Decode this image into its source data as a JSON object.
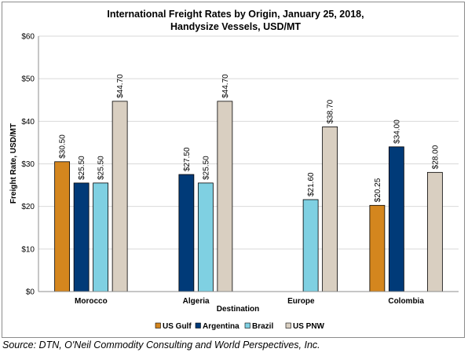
{
  "chart_data": {
    "type": "bar",
    "title": "International Freight Rates by Origin, January 25, 2018,",
    "subtitle": "Handysize Vessels, USD/MT",
    "xlabel": "Destination",
    "ylabel": "Freight Rate, USD/MT",
    "categories": [
      "Morocco",
      "Algeria",
      "Europe",
      "Colombia"
    ],
    "ylim": [
      0,
      60
    ],
    "yticks": [
      "$0",
      "$10",
      "$20",
      "$30",
      "$40",
      "$50",
      "$60"
    ],
    "grid": true,
    "legend_position": "bottom",
    "series": [
      {
        "name": "US Gulf",
        "color": "#D4861E",
        "values": [
          30.5,
          null,
          null,
          20.25
        ],
        "labels": [
          "$30.50",
          "",
          "",
          "$20.25"
        ]
      },
      {
        "name": "Argentina",
        "color": "#003A78",
        "values": [
          25.5,
          27.5,
          null,
          34.0
        ],
        "labels": [
          "$25.50",
          "$27.50",
          "",
          "$34.00"
        ]
      },
      {
        "name": "Brazil",
        "color": "#7FD0E2",
        "values": [
          25.5,
          25.5,
          21.6,
          null
        ],
        "labels": [
          "$25.50",
          "$25.50",
          "$21.60",
          ""
        ]
      },
      {
        "name": "US PNW",
        "color": "#D9CFC1",
        "values": [
          44.7,
          44.7,
          38.7,
          28.0
        ],
        "labels": [
          "$44.70",
          "$44.70",
          "$38.70",
          "$28.00"
        ]
      }
    ]
  },
  "source": "Source: DTN, O'Neil Commodity Consulting and World Perspectives, Inc."
}
